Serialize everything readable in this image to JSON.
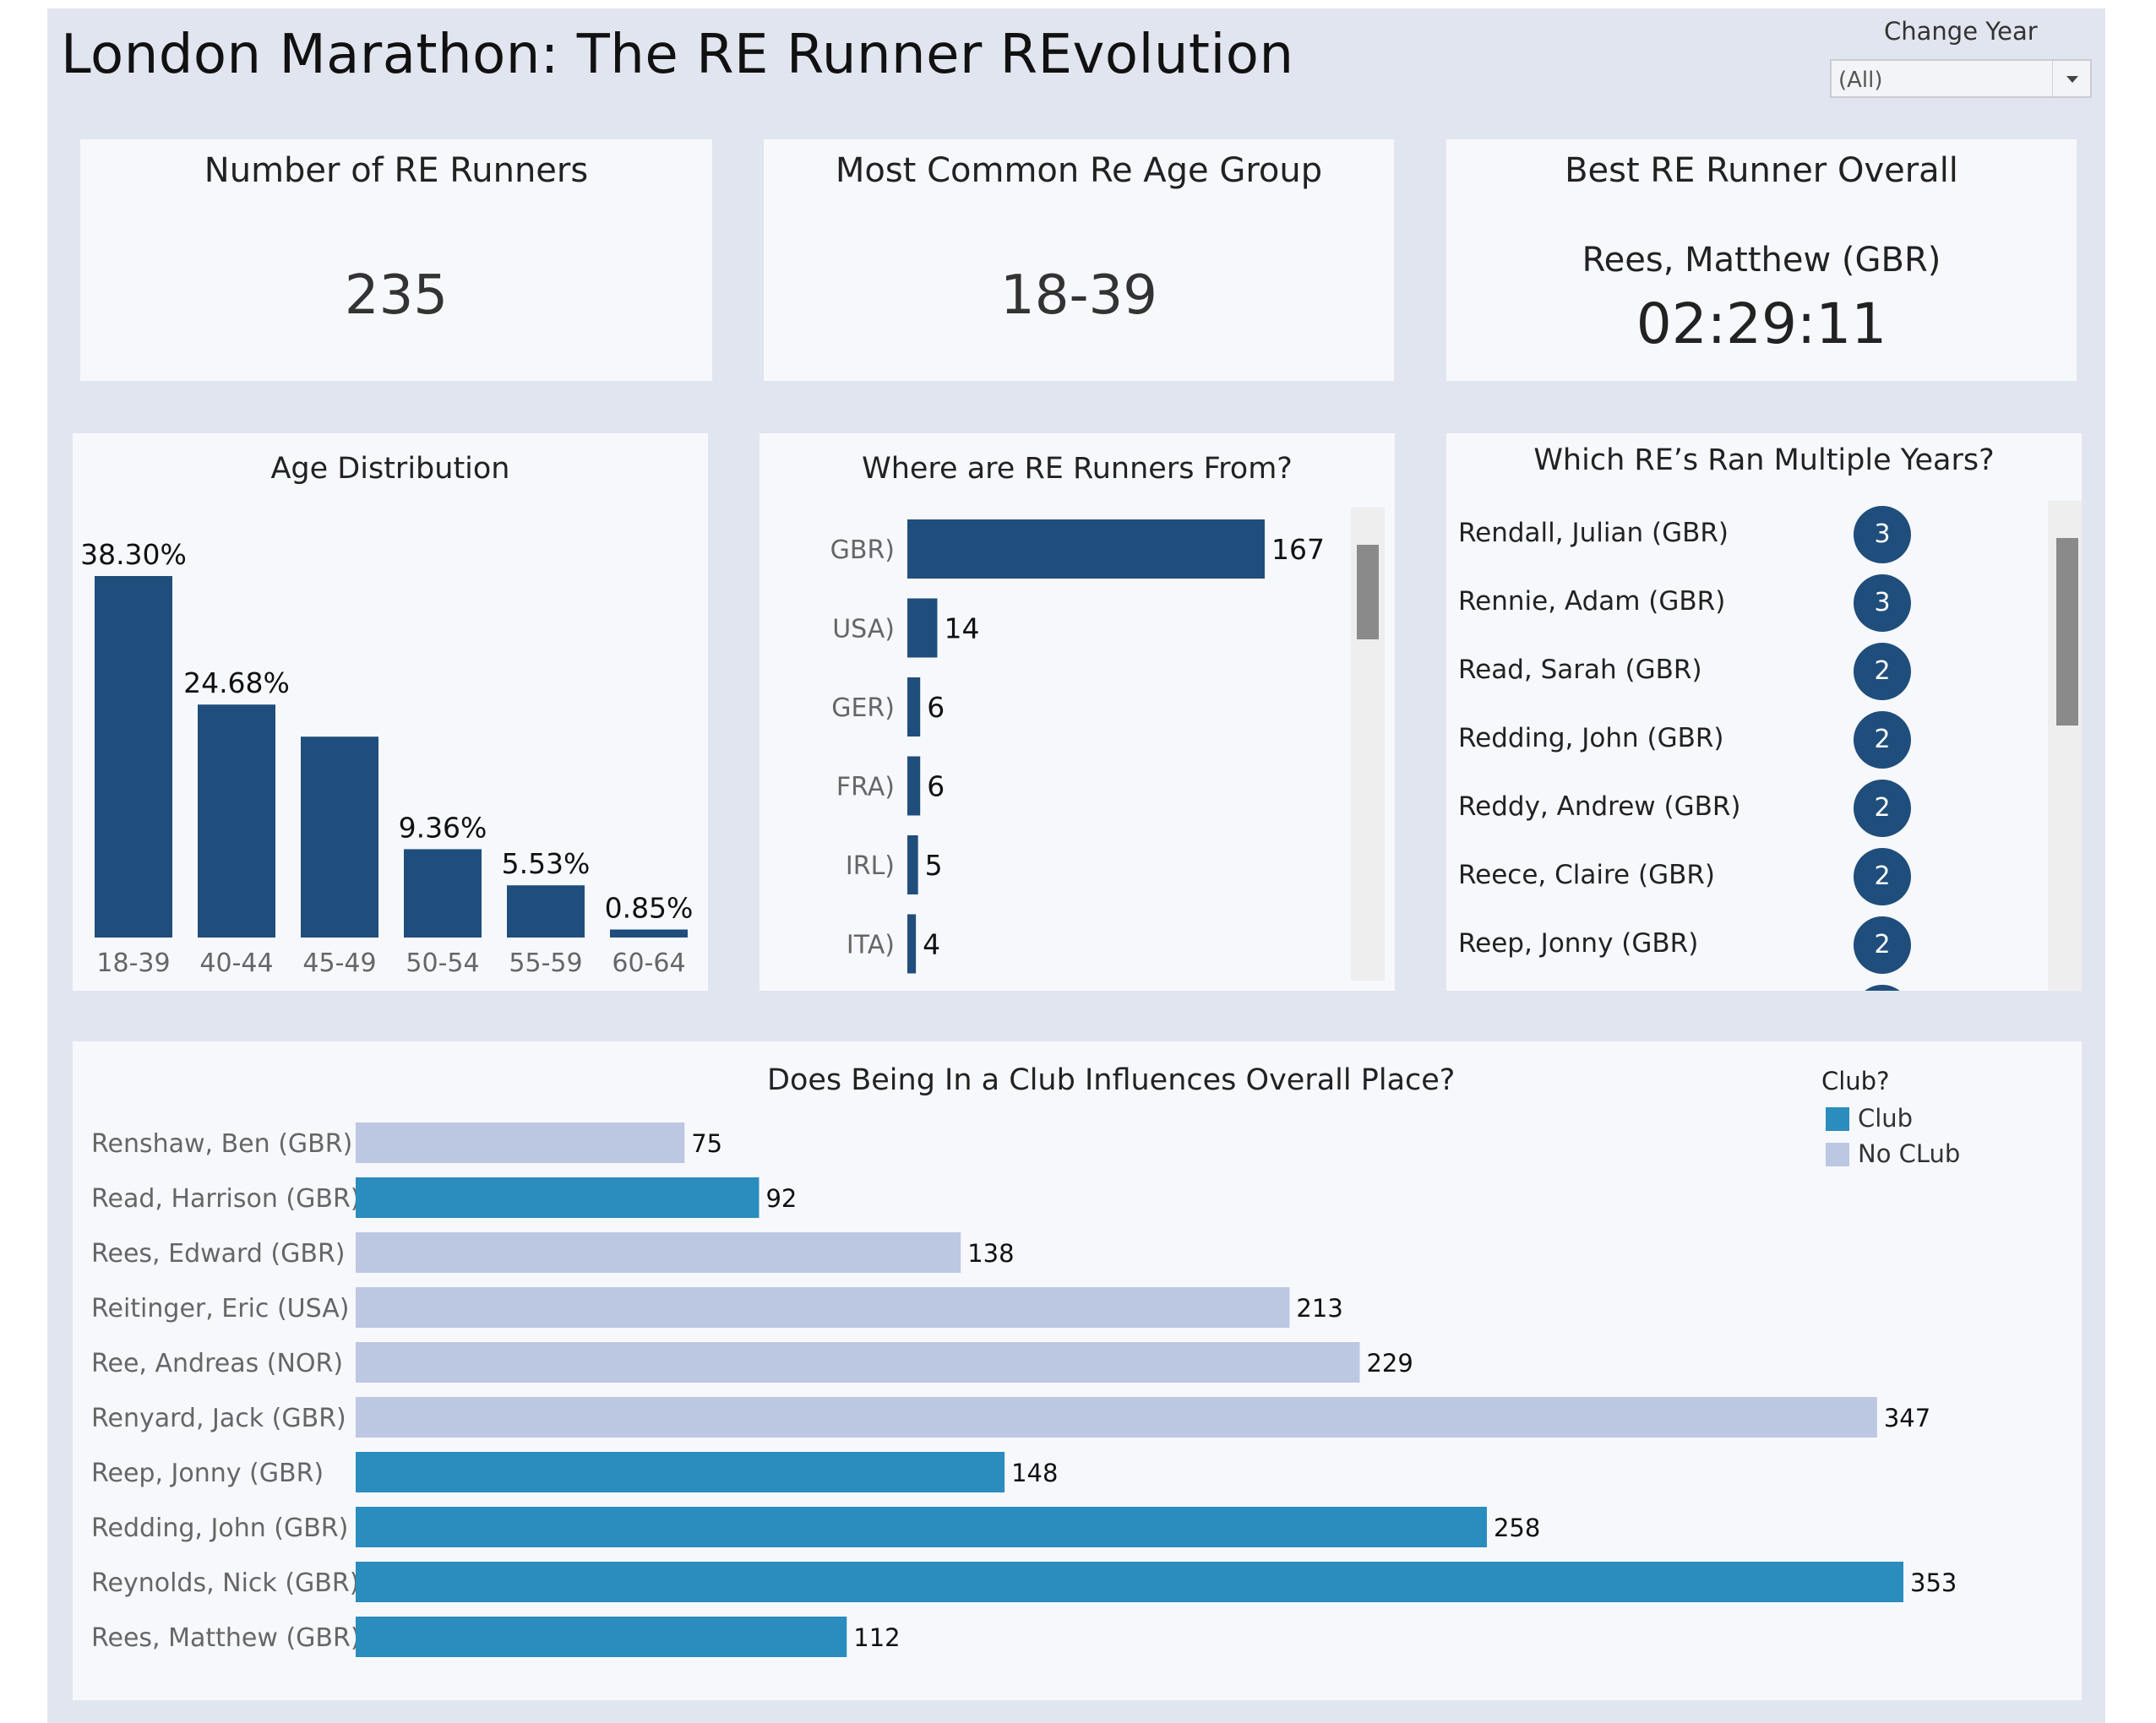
{
  "header": {
    "title": "London Marathon: The RE Runner REvolution",
    "filter_label": "Change Year",
    "filter_value": "(All)"
  },
  "kpis": {
    "runners_title": "Number of RE Runners",
    "runners_value": "235",
    "age_title": "Most Common Re Age Group",
    "age_value": "18-39",
    "best_title": "Best RE Runner Overall",
    "best_name": "Rees, Matthew (GBR)",
    "best_time": "02:29:11"
  },
  "multi_years": {
    "title": "Which RE’s Ran Multiple Years?",
    "items": [
      {
        "name": "Rendall, Julian (GBR)",
        "count": "3"
      },
      {
        "name": "Rennie, Adam (GBR)",
        "count": "3"
      },
      {
        "name": "Read, Sarah (GBR)",
        "count": "2"
      },
      {
        "name": "Redding, John (GBR)",
        "count": "2"
      },
      {
        "name": "Reddy, Andrew (GBR)",
        "count": "2"
      },
      {
        "name": "Reece, Claire (GBR)",
        "count": "2"
      },
      {
        "name": "Reep, Jonny (GBR)",
        "count": "2"
      }
    ]
  },
  "colors": {
    "dark_blue": "#1f4e7c",
    "club": "#2b8cbe",
    "no_club": "#bcc7e1"
  },
  "chart_data": [
    {
      "id": "age",
      "type": "bar",
      "title": "Age Distribution",
      "categories": [
        "18-39",
        "40-44",
        "45-49",
        "50-54",
        "55-59",
        "60-64"
      ],
      "values": [
        38.3,
        24.68,
        21.28,
        9.36,
        5.53,
        0.85
      ],
      "labels": [
        "38.30%",
        "24.68%",
        "",
        "9.36%",
        "5.53%",
        "0.85%"
      ],
      "ylim": [
        0,
        40
      ]
    },
    {
      "id": "country",
      "type": "bar",
      "orientation": "horizontal",
      "title": "Where are RE Runners From?",
      "categories": [
        "GBR)",
        "USA)",
        "GER)",
        "FRA)",
        "IRL)",
        "ITA)"
      ],
      "values": [
        167,
        14,
        6,
        6,
        5,
        4
      ],
      "xlim": [
        0,
        167
      ]
    },
    {
      "id": "club",
      "type": "bar",
      "orientation": "horizontal",
      "title": "Does Being In a Club Influences Overall Place?",
      "legend_title": "Club?",
      "legend": [
        "Club",
        "No CLub"
      ],
      "categories": [
        "Renshaw, Ben (GBR)",
        "Read, Harrison (GBR)",
        "Rees, Edward (GBR)",
        "Reitinger, Eric (USA)",
        "Ree, Andreas (NOR)",
        "Renyard, Jack (GBR)",
        "Reep, Jonny (GBR)",
        "Redding, John (GBR)",
        "Reynolds, Nick (GBR)",
        "Rees, Matthew (GBR)"
      ],
      "values": [
        75,
        92,
        138,
        213,
        229,
        347,
        148,
        258,
        353,
        112
      ],
      "club": [
        "No CLub",
        "Club",
        "No CLub",
        "No CLub",
        "No CLub",
        "No CLub",
        "Club",
        "Club",
        "Club",
        "Club"
      ],
      "xlim": [
        0,
        353
      ]
    }
  ]
}
